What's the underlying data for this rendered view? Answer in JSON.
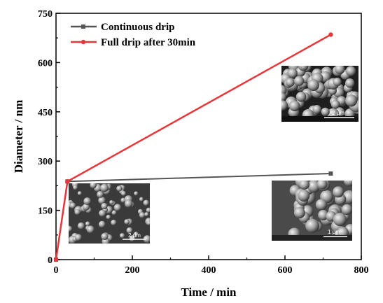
{
  "chart_data": {
    "type": "line",
    "xlabel": "Time / min",
    "ylabel": "Diameter / nm",
    "xlim": [
      0,
      800
    ],
    "ylim": [
      0,
      750
    ],
    "xticks": [
      0,
      200,
      400,
      600,
      800
    ],
    "yticks": [
      0,
      150,
      300,
      450,
      600,
      750
    ],
    "grid": false,
    "legend_position": "top-left",
    "series": [
      {
        "name": "Continuous drip",
        "color": "#555555",
        "marker": "square",
        "x": [
          0,
          30,
          720
        ],
        "y": [
          0,
          238,
          262
        ]
      },
      {
        "name": "Full drip after 30min",
        "color": "#e8373a",
        "marker": "circle",
        "x": [
          0,
          30,
          720
        ],
        "y": [
          0,
          238,
          685
        ]
      }
    ],
    "insets": [
      {
        "scale_label": "2 μm"
      },
      {
        "scale_label": "2 μm"
      },
      {
        "scale_label": "1 μm"
      }
    ]
  }
}
